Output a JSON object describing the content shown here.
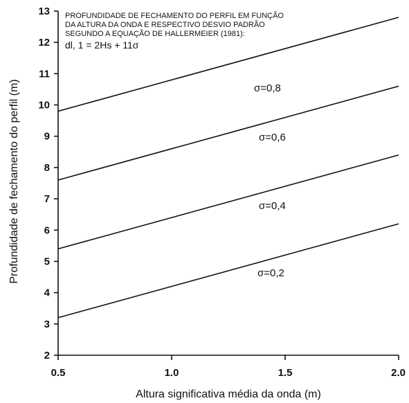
{
  "chart_data": {
    "type": "line",
    "xlabel": "Altura significativa média da onda (m)",
    "ylabel": "Profundidade de fechamento do perfil  (m)",
    "xlim": [
      0.5,
      2.0
    ],
    "ylim": [
      2,
      13
    ],
    "x_ticks": [
      0.5,
      1.0,
      1.5,
      2.0
    ],
    "x_tick_labels": [
      "0.5",
      "1.0",
      "1.5",
      "2.0"
    ],
    "y_ticks": [
      2,
      3,
      4,
      5,
      6,
      7,
      8,
      9,
      10,
      11,
      12,
      13
    ],
    "y_tick_labels": [
      "2",
      "3",
      "4",
      "5",
      "6",
      "7",
      "8",
      "9",
      "10",
      "11",
      "12",
      "13"
    ],
    "grid": false,
    "annotation": {
      "lines": [
        "PROFUNDIDADE DE FECHAMENTO DO PERFIL EM FUNÇÃO",
        "DA ALTURA DA ONDA E RESPECTIVO DESVIO PADRÃO",
        "SEGUNDO A EQUAÇÃO DE HALLERMEIER (1981):"
      ],
      "equation": "dl, 1 = 2Hs + 11σ"
    },
    "series": [
      {
        "name": "σ=0,8",
        "x": [
          0.5,
          2.0
        ],
        "values": [
          9.8,
          12.8
        ]
      },
      {
        "name": "σ=0,6",
        "x": [
          0.5,
          2.0
        ],
        "values": [
          7.6,
          10.6
        ]
      },
      {
        "name": "σ=0,4",
        "x": [
          0.5,
          2.0
        ],
        "values": [
          5.4,
          8.4
        ]
      },
      {
        "name": "σ=0,2",
        "x": [
          0.5,
          2.0
        ],
        "values": [
          3.2,
          6.2
        ]
      }
    ],
    "colors": {
      "line": "#111111",
      "background": "#ffffff"
    }
  }
}
